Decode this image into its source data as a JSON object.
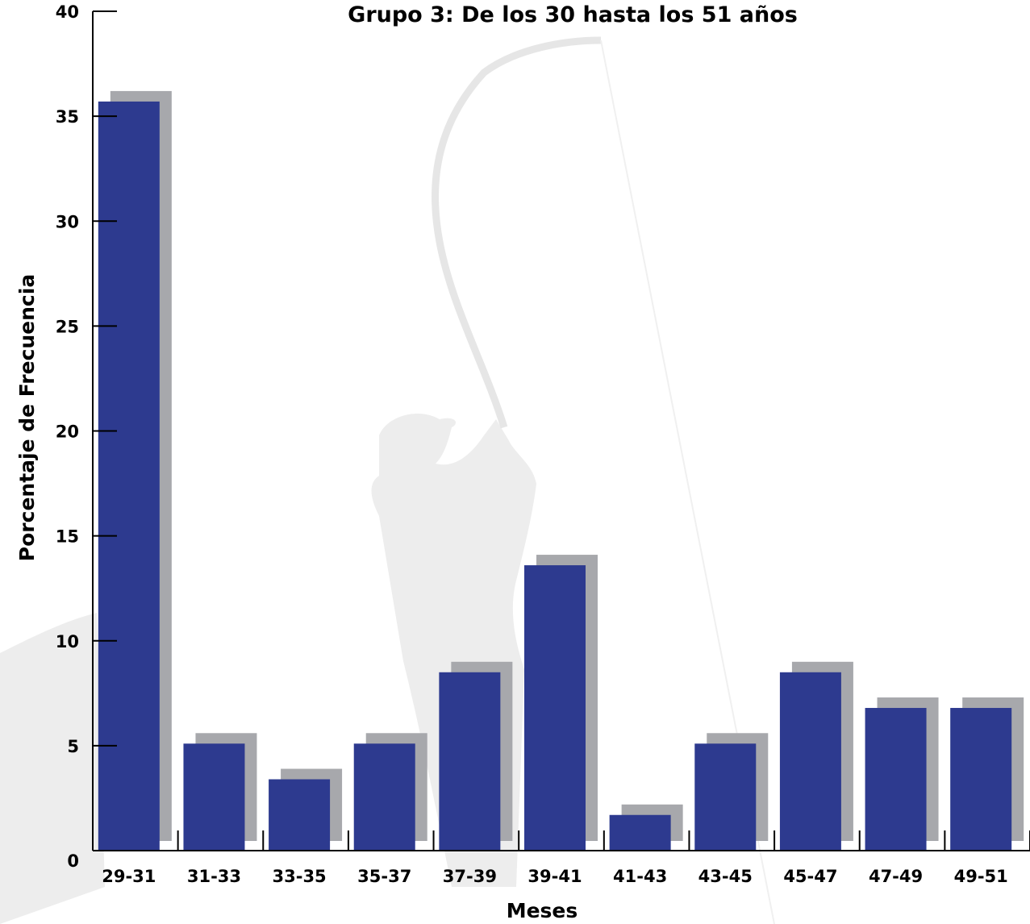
{
  "chart_data": {
    "type": "bar",
    "title": "Grupo 3: De los 30 hasta los 51 años",
    "xlabel": "Meses",
    "ylabel": "Porcentaje de Frecuencia",
    "categories": [
      "29-31",
      "31-33",
      "33-35",
      "35-37",
      "37-39",
      "39-41",
      "41-43",
      "43-45",
      "45-47",
      "47-49",
      "49-51"
    ],
    "series": [
      {
        "values": [
          35.7,
          5.1,
          3.4,
          5.1,
          8.5,
          13.6,
          1.7,
          5.1,
          8.5,
          6.8,
          6.8
        ]
      }
    ],
    "ylim": [
      0,
      40
    ],
    "yticks": [
      0,
      5,
      10,
      15,
      20,
      25,
      30,
      35,
      40
    ],
    "grid": false,
    "colors": {
      "bar": "#2d3a8f",
      "shadow": "#a7a8ac",
      "watermark": "#ededed"
    }
  }
}
